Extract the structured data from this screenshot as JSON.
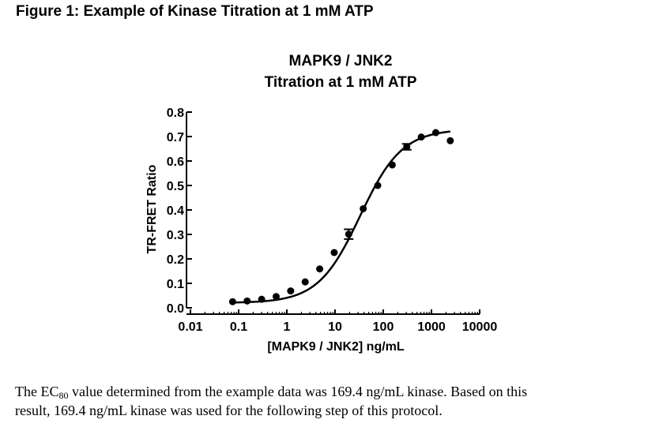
{
  "figure": {
    "heading": "Figure 1: Example of Kinase Titration at 1 mM ATP"
  },
  "caption": {
    "prefix": "The EC",
    "subscript": "80",
    "line1_rest": " value determined from the example data was 169.4 ng/mL kinase.  Based on this",
    "line2": "result, 169.4 ng/mL kinase was used for the following step of this protocol."
  },
  "chart_data": {
    "type": "scatter",
    "title": "MAPK9 / JNK2",
    "subtitle": "Titration at 1 mM ATP",
    "xlabel": "[MAPK9 / JNK2] ng/mL",
    "ylabel": "TR-FRET Ratio",
    "xscale": "log",
    "xlim": [
      0.01,
      10000
    ],
    "ylim": [
      0.0,
      0.8
    ],
    "xticks": [
      "0.01",
      "0.1",
      "1",
      "10",
      "100",
      "1000",
      "10000"
    ],
    "xtick_values": [
      0.01,
      0.1,
      1,
      10,
      100,
      1000,
      10000
    ],
    "yticks": [
      "0.0",
      "0.1",
      "0.2",
      "0.3",
      "0.4",
      "0.5",
      "0.6",
      "0.7",
      "0.8"
    ],
    "ytick_values": [
      0.0,
      0.1,
      0.2,
      0.3,
      0.4,
      0.5,
      0.6,
      0.7,
      0.8
    ],
    "grid": false,
    "series": [
      {
        "x": [
          0.075,
          0.15,
          0.3,
          0.6,
          1.2,
          2.4,
          4.8,
          9.6,
          19.2,
          38.4,
          76.8,
          153.6,
          307.2,
          614.4,
          1228.8,
          2457.6
        ],
        "y": [
          0.025,
          0.028,
          0.035,
          0.046,
          0.069,
          0.106,
          0.159,
          0.226,
          0.301,
          0.405,
          0.5,
          0.584,
          0.658,
          0.698,
          0.716,
          0.683
        ],
        "yerr": [
          0,
          0,
          0,
          0,
          0,
          0,
          0,
          0,
          0.02,
          0,
          0,
          0,
          0.012,
          0,
          0,
          0
        ]
      }
    ],
    "fit": {
      "model": "sigmoidal dose-response",
      "bottom": 0.02,
      "top": 0.73,
      "ec50": 33,
      "hill": 1.0
    }
  }
}
